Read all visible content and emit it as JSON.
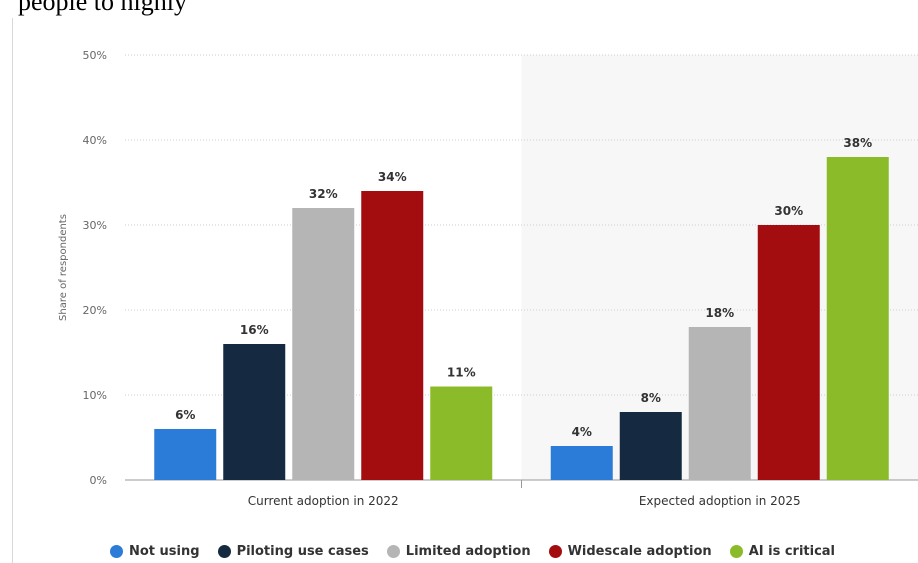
{
  "page_text": "people to highly",
  "chart_data": {
    "type": "bar",
    "ylabel": "Share of respondents",
    "ylim": [
      0,
      50
    ],
    "yticks": [
      "0%",
      "10%",
      "20%",
      "30%",
      "40%",
      "50%"
    ],
    "ytick_values": [
      0,
      10,
      20,
      30,
      40,
      50
    ],
    "categories": [
      "Current adoption in 2022",
      "Expected adoption in 2025"
    ],
    "highlighted_category": "Expected adoption in 2025",
    "grid": "horizontal dotted",
    "legend_position": "bottom",
    "series": [
      {
        "name": "Not using",
        "color": "#2b7bd9",
        "values": [
          6,
          4
        ],
        "labels": [
          "6%",
          "4%"
        ]
      },
      {
        "name": "Piloting use cases",
        "color": "#152a40",
        "values": [
          16,
          8
        ],
        "labels": [
          "16%",
          "8%"
        ]
      },
      {
        "name": "Limited adoption",
        "color": "#b5b5b5",
        "values": [
          32,
          18
        ],
        "labels": [
          "32%",
          "18%"
        ]
      },
      {
        "name": "Widescale adoption",
        "color": "#a30d10",
        "values": [
          34,
          30
        ],
        "labels": [
          "34%",
          "30%"
        ]
      },
      {
        "name": "AI is critical",
        "color": "#8cbb29",
        "values": [
          11,
          38
        ],
        "labels": [
          "11%",
          "38%"
        ]
      }
    ]
  }
}
